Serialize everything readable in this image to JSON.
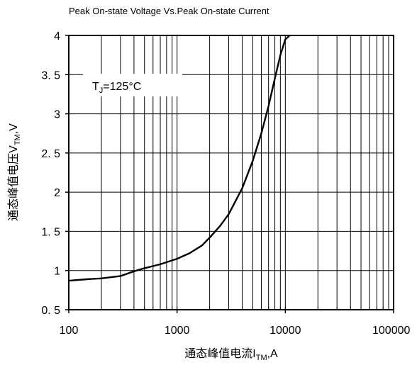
{
  "chart_data": {
    "type": "line",
    "title": "Peak On-state Voltage Vs.Peak On-state Current",
    "xlabel": {
      "main": "通态峰值电流I",
      "sub": "TM",
      "suffix": ",A"
    },
    "ylabel": {
      "main": "通态峰值电压V",
      "sub": "TM",
      "suffix": ",V"
    },
    "x_scale": "log",
    "xlim": [
      100,
      100000
    ],
    "ylim": [
      0.5,
      4
    ],
    "x_ticks": [
      100,
      1000,
      10000,
      100000
    ],
    "x_tick_labels": [
      "100",
      "1000",
      "10000",
      "100000"
    ],
    "y_ticks": [
      0.5,
      1,
      1.5,
      2,
      2.5,
      3,
      3.5,
      4
    ],
    "y_tick_labels": [
      "0. 5",
      "1",
      "1. 5",
      "2",
      "2. 5",
      "3",
      "3. 5",
      "4"
    ],
    "grid": true,
    "legend": "none",
    "annotation": {
      "main": "T",
      "sub": "J",
      "suffix": "=125°C"
    },
    "series": [
      {
        "x": [
          100,
          150,
          200,
          300,
          400,
          500,
          700,
          1000,
          1300,
          1700,
          2000,
          2500,
          3000,
          4000,
          5000,
          6000,
          7000,
          8000,
          9000,
          10000,
          11000
        ],
        "y": [
          0.87,
          0.89,
          0.9,
          0.93,
          0.99,
          1.03,
          1.08,
          1.15,
          1.22,
          1.32,
          1.42,
          1.57,
          1.72,
          2.05,
          2.4,
          2.75,
          3.1,
          3.45,
          3.75,
          3.95,
          4.0
        ]
      }
    ]
  }
}
